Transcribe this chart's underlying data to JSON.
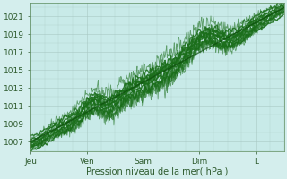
{
  "xlabel": "Pression niveau de la mer( hPa )",
  "ylim": [
    1006.0,
    1022.5
  ],
  "yticks": [
    1007,
    1009,
    1011,
    1013,
    1015,
    1017,
    1019,
    1021
  ],
  "xlim": [
    0,
    4.5
  ],
  "xtick_labels": [
    "Jeu",
    "Ven",
    "Sam",
    "Dim",
    "L"
  ],
  "xtick_positions": [
    0,
    1,
    2,
    3,
    4
  ],
  "bg_color": "#d4eeed",
  "plot_bg_color": "#c8eae8",
  "grid_color": "#a8c8c4",
  "line_color": "#1a6e1a",
  "line_color_dark": "#0d4d0d"
}
